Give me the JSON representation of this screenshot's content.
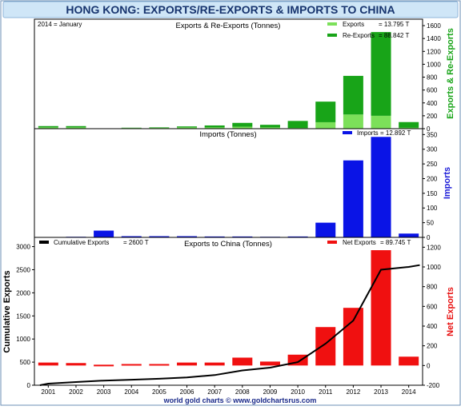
{
  "title": "HONG KONG: EXPORTS/RE-EXPORTS & IMPORTS TO CHINA",
  "footer": "world gold charts © www.goldchartsrus.com",
  "colors": {
    "title_bg": "#cfe6f7",
    "title_text": "#17346e",
    "exports": "#7ce05a",
    "reexports": "#18a418",
    "green_label": "#18a418",
    "imports": "#0a14e6",
    "imports_label": "#1a1ad8",
    "net": "#f01010",
    "net_label": "#e81010",
    "cumulative": "#000000",
    "footer_text": "#1a2a8a"
  },
  "chart_data": [
    {
      "type": "bar",
      "title": "Exports & Re-Exports (Tonnes)",
      "period_note": "2014 = January",
      "stacked": true,
      "categories": [
        "2001",
        "2002",
        "2003",
        "2004",
        "2005",
        "2006",
        "2007",
        "2008",
        "2009",
        "2010",
        "2011",
        "2012",
        "2013",
        "2014"
      ],
      "series": [
        {
          "name": "Exports",
          "legend": "Exports",
          "legend_value": "= 13.795 T",
          "values": [
            20,
            20,
            5,
            10,
            12,
            20,
            20,
            30,
            20,
            10,
            100,
            220,
            200,
            13.795
          ]
        },
        {
          "name": "Re-Exports",
          "legend": "Re-Exports",
          "legend_value": "= 88.842 T",
          "values": [
            20,
            20,
            0,
            5,
            8,
            15,
            30,
            60,
            40,
            110,
            320,
            600,
            1300,
            88.842
          ]
        }
      ],
      "ylabel": "Exports & Re-Exports",
      "ylim": [
        0,
        1700
      ],
      "yticks": [
        0,
        200,
        400,
        600,
        800,
        1000,
        1200,
        1400,
        1600
      ],
      "legend_position": "top-right"
    },
    {
      "type": "bar",
      "title": "Imports (Tonnes)",
      "categories": [
        "2001",
        "2002",
        "2003",
        "2004",
        "2005",
        "2006",
        "2007",
        "2008",
        "2009",
        "2010",
        "2011",
        "2012",
        "2013",
        "2014"
      ],
      "series": [
        {
          "name": "Imports",
          "legend": "Imports",
          "legend_value": "= 12.892 T",
          "values": [
            1,
            2,
            23,
            4,
            4,
            4,
            3,
            3,
            2,
            3,
            50,
            262,
            342,
            12.892
          ]
        }
      ],
      "ylabel": "Imports",
      "ylim": [
        0,
        370
      ],
      "yticks": [
        0,
        50,
        100,
        150,
        200,
        250,
        300,
        350
      ],
      "legend_position": "top-right"
    },
    {
      "type": "bar+line",
      "title": "Exports to China (Tonnes)",
      "categories": [
        "2001",
        "2002",
        "2003",
        "2004",
        "2005",
        "2006",
        "2007",
        "2008",
        "2009",
        "2010",
        "2011",
        "2012",
        "2013",
        "2014"
      ],
      "net_exports": {
        "name": "Net Exports",
        "legend": "Net Exports",
        "legend_value": "= 89.745 T",
        "values": [
          30,
          25,
          0,
          15,
          15,
          30,
          30,
          80,
          40,
          110,
          390,
          585,
          1170,
          89.745
        ]
      },
      "cumulative": {
        "name": "Cumulative Exports",
        "legend": "Cumulative Exports",
        "legend_value": "= 2600 T",
        "x": [
          2000.7,
          2001,
          2002,
          2003,
          2004,
          2005,
          2006,
          2007,
          2008,
          2009,
          2010,
          2011,
          2012,
          2013,
          2014,
          2014.4
        ],
        "values": [
          0,
          35,
          70,
          100,
          120,
          140,
          170,
          220,
          320,
          380,
          500,
          900,
          1400,
          2500,
          2560,
          2600
        ]
      },
      "xlabel": "",
      "ylabel_left": "Cumulative Exports",
      "ylabel_right": "Net Exports",
      "ylim_left": [
        0,
        3200
      ],
      "ylim_right": [
        -200,
        1300
      ],
      "yticks_left": [
        0,
        500,
        1000,
        1500,
        2000,
        2500,
        3000
      ],
      "yticks_right": [
        -200,
        0,
        200,
        400,
        600,
        800,
        1000,
        1200
      ],
      "legend_position": "top"
    }
  ]
}
